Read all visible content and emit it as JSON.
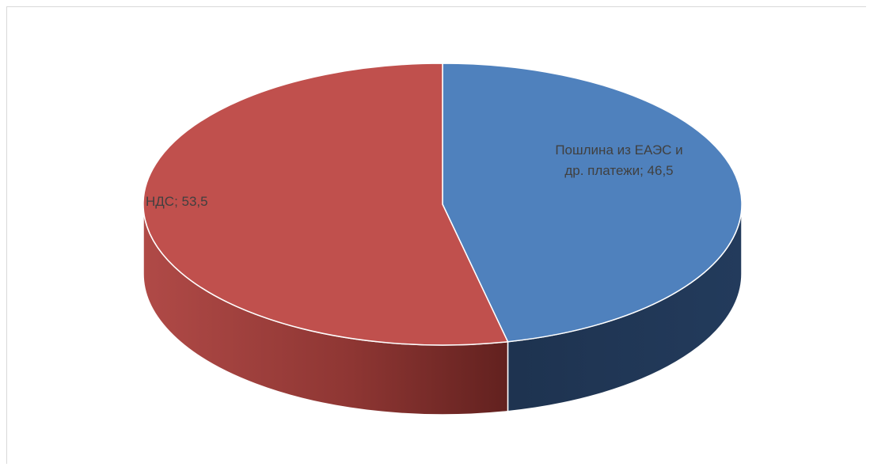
{
  "chart_data": {
    "type": "pie",
    "style": "3d",
    "categories": [
      "Пошлина из ЕАЭС и др. платежи",
      "НДС"
    ],
    "values": [
      46.5,
      53.5
    ],
    "labels": [
      [
        "Пошлина из ЕАЭС и",
        "др. платежи; 46,5"
      ],
      [
        "НДС; 53,5"
      ]
    ],
    "colors": [
      "#4f81bd",
      "#c0504d"
    ],
    "side_colors": [
      "#1f344f",
      "#8f3533"
    ],
    "title": "",
    "legend": "none"
  }
}
